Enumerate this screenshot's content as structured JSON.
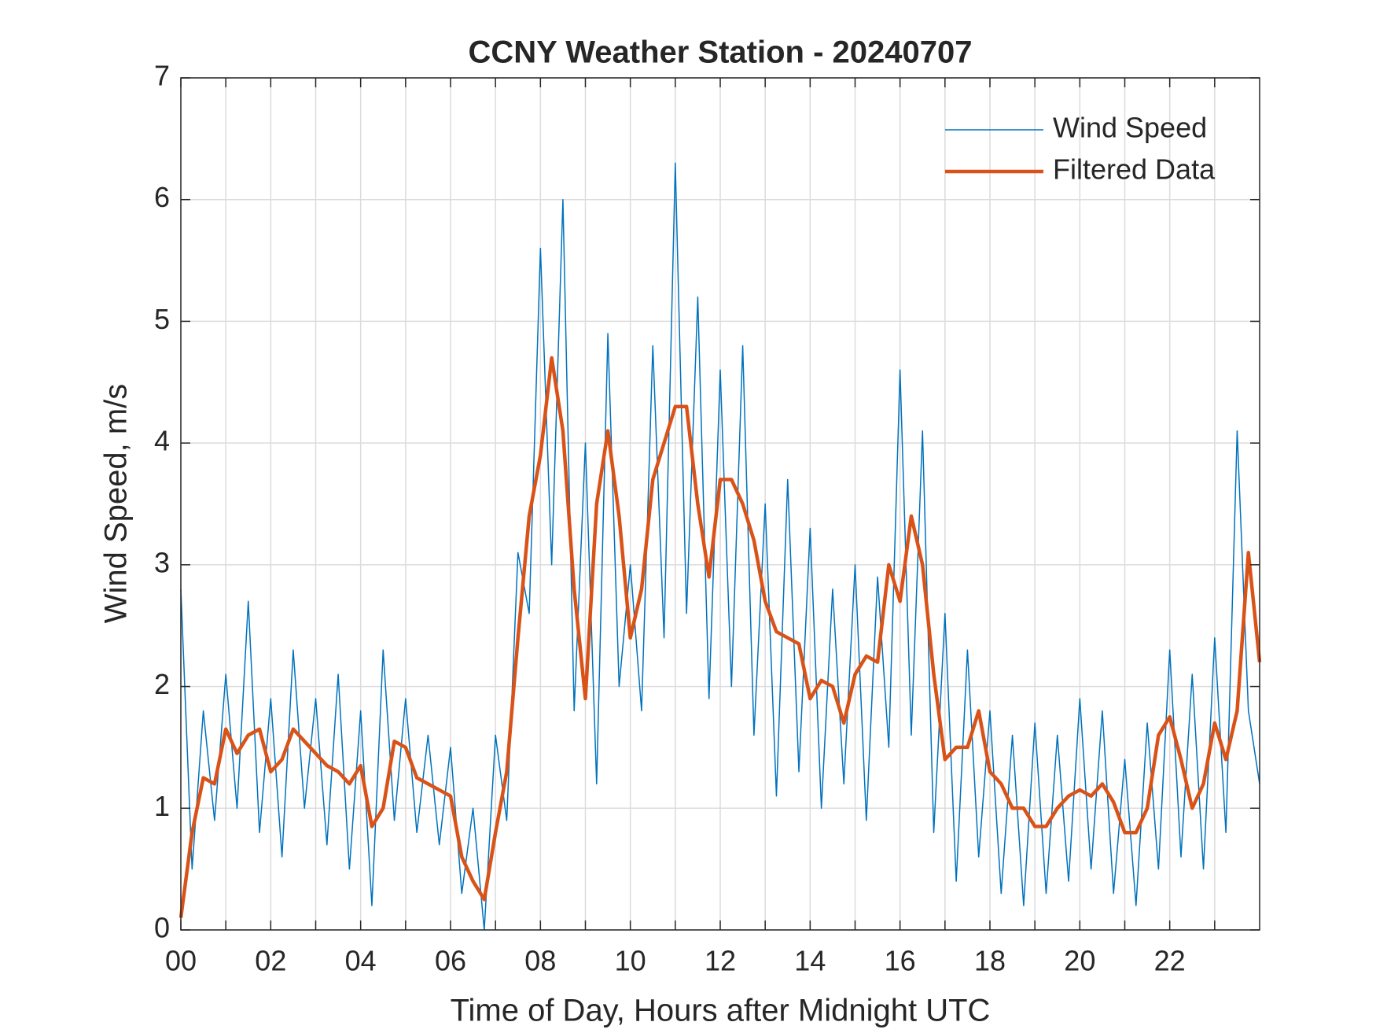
{
  "chart_data": {
    "type": "line",
    "title": "CCNY Weather Station - 20240707",
    "x_label": "Time of Day, Hours after Midnight UTC",
    "y_label": "Wind Speed, m/s",
    "xlim": [
      0,
      24
    ],
    "ylim": [
      0,
      7
    ],
    "xticks": [
      {
        "value": 0,
        "label": "00"
      },
      {
        "value": 2,
        "label": "02"
      },
      {
        "value": 4,
        "label": "04"
      },
      {
        "value": 6,
        "label": "06"
      },
      {
        "value": 8,
        "label": "08"
      },
      {
        "value": 10,
        "label": "10"
      },
      {
        "value": 12,
        "label": "12"
      },
      {
        "value": 14,
        "label": "14"
      },
      {
        "value": 16,
        "label": "16"
      },
      {
        "value": 18,
        "label": "18"
      },
      {
        "value": 20,
        "label": "20"
      },
      {
        "value": 22,
        "label": "22"
      }
    ],
    "xminorticks": [
      1,
      3,
      5,
      7,
      9,
      11,
      13,
      15,
      17,
      19,
      21,
      23
    ],
    "yticks": [
      0,
      1,
      2,
      3,
      4,
      5,
      6,
      7
    ],
    "grid": true,
    "legend": "upper-right",
    "x": [
      0,
      0.25,
      0.5,
      0.75,
      1,
      1.25,
      1.5,
      1.75,
      2,
      2.25,
      2.5,
      2.75,
      3,
      3.25,
      3.5,
      3.75,
      4,
      4.25,
      4.5,
      4.75,
      5,
      5.25,
      5.5,
      5.75,
      6,
      6.25,
      6.5,
      6.75,
      7,
      7.25,
      7.5,
      7.75,
      8,
      8.25,
      8.5,
      8.75,
      9,
      9.25,
      9.5,
      9.75,
      10,
      10.25,
      10.5,
      10.75,
      11,
      11.25,
      11.5,
      11.75,
      12,
      12.25,
      12.5,
      12.75,
      13,
      13.25,
      13.5,
      13.75,
      14,
      14.25,
      14.5,
      14.75,
      15,
      15.25,
      15.5,
      15.75,
      16,
      16.25,
      16.5,
      16.75,
      17,
      17.25,
      17.5,
      17.75,
      18,
      18.25,
      18.5,
      18.75,
      19,
      19.25,
      19.5,
      19.75,
      20,
      20.25,
      20.5,
      20.75,
      21,
      21.25,
      21.5,
      21.75,
      22,
      22.25,
      22.5,
      22.75,
      23,
      23.25,
      23.5,
      23.75,
      24
    ],
    "series": [
      {
        "name": "Wind Speed",
        "color": "#0072BD",
        "width": 1.5,
        "values": [
          2.8,
          0.5,
          1.8,
          0.9,
          2.1,
          1.0,
          2.7,
          0.8,
          1.9,
          0.6,
          2.3,
          1.0,
          1.9,
          0.7,
          2.1,
          0.5,
          1.8,
          0.2,
          2.3,
          0.9,
          1.9,
          0.8,
          1.6,
          0.7,
          1.5,
          0.3,
          1.0,
          0.0,
          1.6,
          0.9,
          3.1,
          2.6,
          5.6,
          3.0,
          6.0,
          1.8,
          4.0,
          1.2,
          4.9,
          2.0,
          3.0,
          1.8,
          4.8,
          2.4,
          6.3,
          2.6,
          5.2,
          1.9,
          4.6,
          2.0,
          4.8,
          1.6,
          3.5,
          1.1,
          3.7,
          1.3,
          3.3,
          1.0,
          2.8,
          1.2,
          3.0,
          0.9,
          2.9,
          1.5,
          4.6,
          1.6,
          4.1,
          0.8,
          2.6,
          0.4,
          2.3,
          0.6,
          1.8,
          0.3,
          1.6,
          0.2,
          1.7,
          0.3,
          1.6,
          0.4,
          1.9,
          0.5,
          1.8,
          0.3,
          1.4,
          0.2,
          1.7,
          0.5,
          2.3,
          0.6,
          2.1,
          0.5,
          2.4,
          0.8,
          4.1,
          1.8,
          1.2
        ]
      },
      {
        "name": "Filtered Data",
        "color": "#D95319",
        "width": 4.5,
        "values": [
          0.1,
          0.8,
          1.25,
          1.2,
          1.65,
          1.45,
          1.6,
          1.65,
          1.3,
          1.4,
          1.65,
          1.55,
          1.45,
          1.35,
          1.3,
          1.2,
          1.35,
          0.85,
          1.0,
          1.55,
          1.5,
          1.25,
          1.2,
          1.15,
          1.1,
          0.6,
          0.4,
          0.25,
          0.8,
          1.3,
          2.4,
          3.4,
          3.9,
          4.7,
          4.1,
          2.8,
          1.9,
          3.5,
          4.1,
          3.4,
          2.4,
          2.8,
          3.7,
          4.0,
          4.3,
          4.3,
          3.5,
          2.9,
          3.7,
          3.7,
          3.5,
          3.2,
          2.7,
          2.45,
          2.4,
          2.35,
          1.9,
          2.05,
          2.0,
          1.7,
          2.1,
          2.25,
          2.2,
          3.0,
          2.7,
          3.4,
          3.0,
          2.1,
          1.4,
          1.5,
          1.5,
          1.8,
          1.3,
          1.2,
          1.0,
          1.0,
          0.85,
          0.85,
          1.0,
          1.1,
          1.15,
          1.1,
          1.2,
          1.05,
          0.8,
          0.8,
          1.0,
          1.6,
          1.75,
          1.4,
          1.0,
          1.2,
          1.7,
          1.4,
          1.8,
          3.1,
          2.2
        ]
      }
    ]
  }
}
